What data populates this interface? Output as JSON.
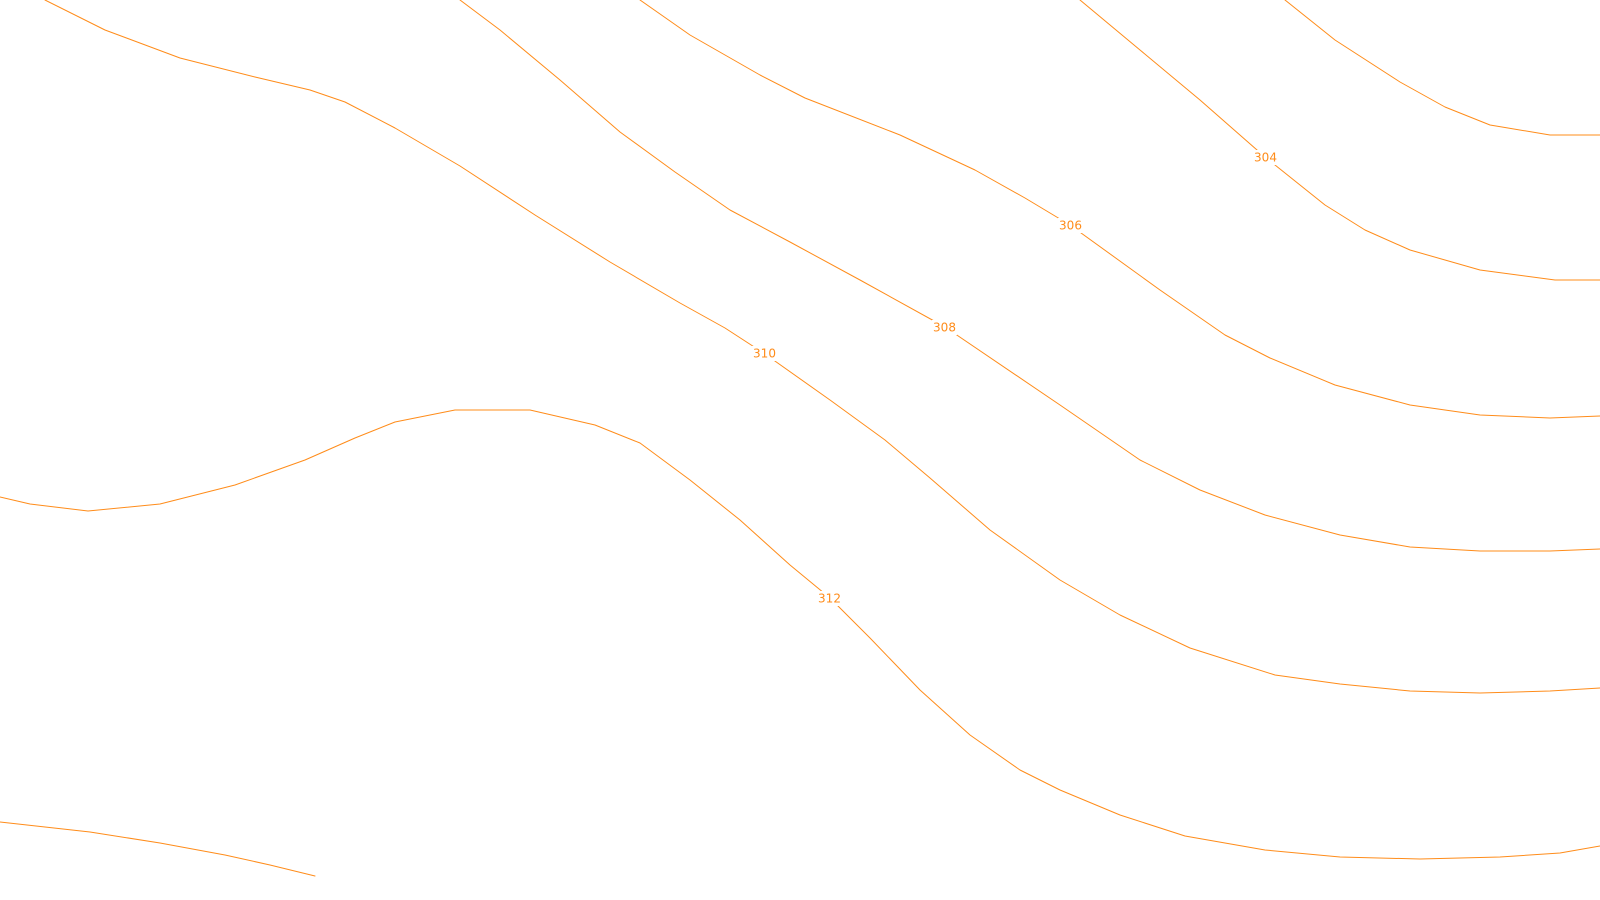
{
  "map": {
    "background_color": "#ffffff",
    "line_color": "#ff8c1a",
    "label_color": "#ff8c1a",
    "contour_labels": {
      "c304": "304",
      "c306": "306",
      "c308": "308",
      "c310": "310",
      "c312": "312"
    }
  }
}
